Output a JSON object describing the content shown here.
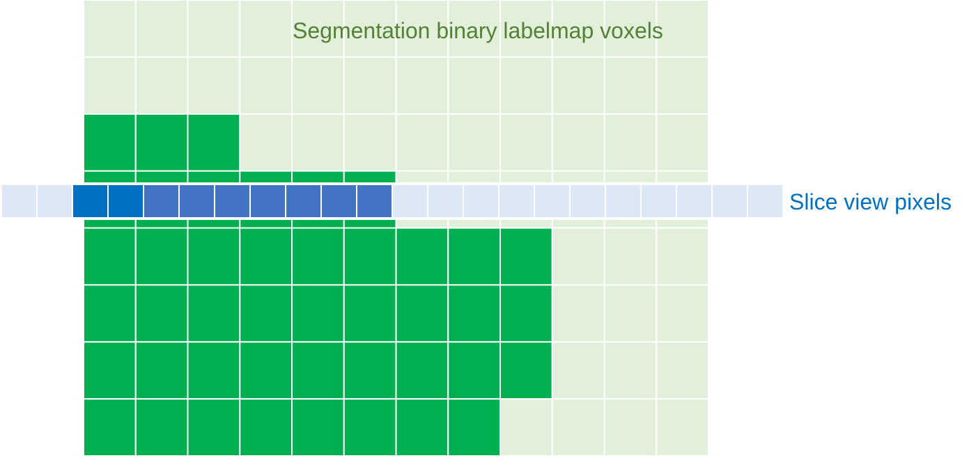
{
  "labels": {
    "voxels": "Segmentation binary labelmap voxels",
    "pixels": "Slice view pixels"
  },
  "colors": {
    "voxel_filled": "#00b050",
    "voxel_empty": "#e2efda",
    "voxel_grid_line": "#ffffff",
    "pixel_empty": "#dce8f5",
    "pixel_filled_dark": "#0070c0",
    "pixel_filled": "#4472c4",
    "voxels_label_color": "#548235",
    "pixels_label_color": "#0070c0"
  },
  "voxel_grid": {
    "columns": 12,
    "rows": 8,
    "filled": [
      [
        0,
        0,
        0,
        0,
        0,
        0,
        0,
        0,
        0,
        0,
        0,
        0
      ],
      [
        0,
        0,
        0,
        0,
        0,
        0,
        0,
        0,
        0,
        0,
        0,
        0
      ],
      [
        1,
        1,
        1,
        0,
        0,
        0,
        0,
        0,
        0,
        0,
        0,
        0
      ],
      [
        1,
        1,
        1,
        1,
        1,
        1,
        0,
        0,
        0,
        0,
        0,
        0
      ],
      [
        1,
        1,
        1,
        1,
        1,
        1,
        1,
        1,
        1,
        0,
        0,
        0
      ],
      [
        1,
        1,
        1,
        1,
        1,
        1,
        1,
        1,
        1,
        0,
        0,
        0
      ],
      [
        1,
        1,
        1,
        1,
        1,
        1,
        1,
        1,
        1,
        0,
        0,
        0
      ],
      [
        1,
        1,
        1,
        1,
        1,
        1,
        1,
        1,
        0,
        0,
        0,
        0
      ]
    ]
  },
  "pixel_row": {
    "count": 22,
    "states": [
      "empty",
      "empty",
      "dark",
      "dark",
      "filled",
      "filled",
      "filled",
      "filled",
      "filled",
      "filled",
      "filled",
      "empty",
      "empty",
      "empty",
      "empty",
      "empty",
      "empty",
      "empty",
      "empty",
      "empty",
      "empty",
      "empty"
    ]
  }
}
